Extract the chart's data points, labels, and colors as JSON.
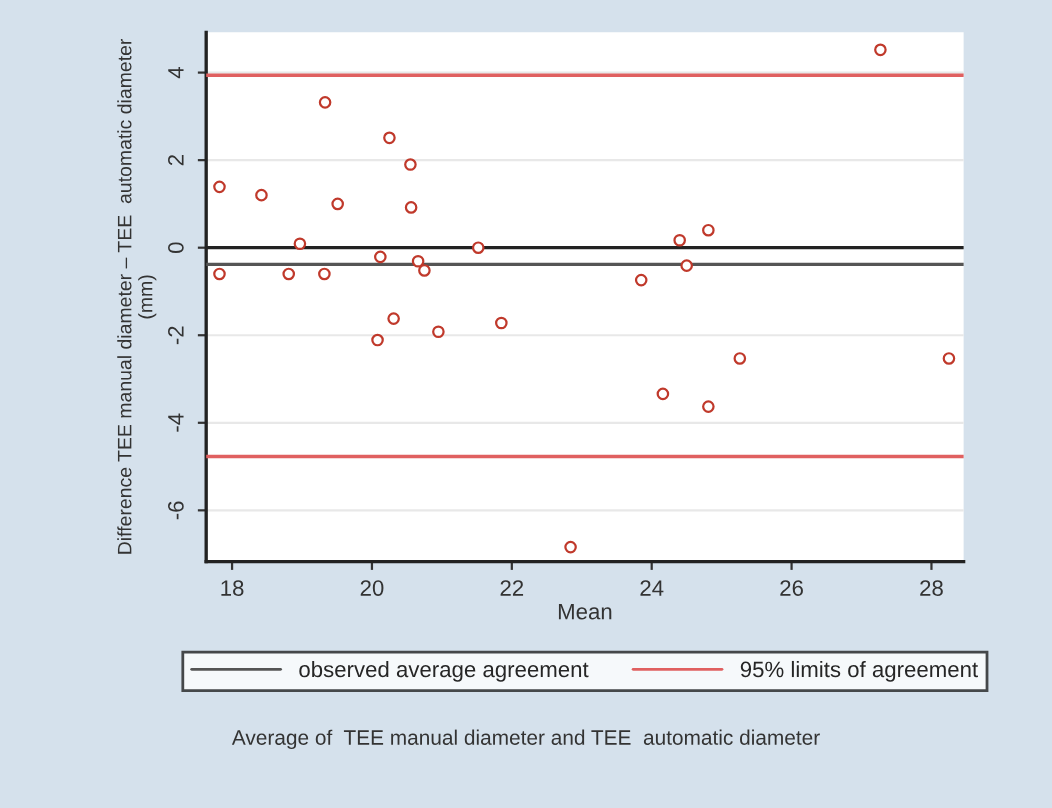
{
  "chart_data": {
    "type": "scatter",
    "xlabel": "Mean",
    "ylabel": "Difference TEE manual diameter – TEE  automatic diameter\n(mm)",
    "annotations": [
      "Average of  TEE manual diameter and TEE  automatic diameter"
    ],
    "x": [
      17.82,
      17.82,
      18.42,
      18.81,
      18.97,
      19.33,
      19.32,
      19.51,
      20.08,
      20.12,
      20.25,
      20.31,
      20.55,
      20.56,
      20.66,
      20.75,
      20.95,
      21.52,
      21.85,
      22.84,
      23.85,
      24.16,
      24.4,
      24.5,
      24.81,
      24.81,
      25.26,
      27.27,
      28.25
    ],
    "values": [
      1.39,
      -0.6,
      1.2,
      -0.6,
      0.09,
      3.32,
      -0.6,
      1.0,
      -2.11,
      -0.21,
      2.51,
      -1.62,
      1.9,
      0.92,
      -0.31,
      -0.52,
      -1.92,
      0.0,
      -1.72,
      -6.84,
      -0.74,
      -3.34,
      0.17,
      -0.41,
      0.4,
      -3.63,
      -2.53,
      4.52,
      -2.53
    ],
    "color": "#c0392b",
    "marker": "circle",
    "xlim": [
      17.63,
      28.46
    ],
    "ylim": [
      -7.17,
      4.92
    ],
    "xticks": [
      18,
      20,
      22,
      24,
      26,
      28
    ],
    "yticks": [
      -6,
      -4,
      -2,
      0,
      2,
      4
    ],
    "grid": "y",
    "legend": "bottom",
    "ref_lines": [
      {
        "axis": "y",
        "value": 0,
        "label": null,
        "color": "#222222"
      },
      {
        "axis": "y",
        "value": -0.38,
        "label": "observed average agreement",
        "color": "#555555"
      },
      {
        "axis": "y",
        "value": 3.94,
        "label": "95% limits of agreement",
        "color": "#e06060"
      },
      {
        "axis": "y",
        "value": -4.77,
        "label": null,
        "color": "#e06060"
      }
    ]
  }
}
